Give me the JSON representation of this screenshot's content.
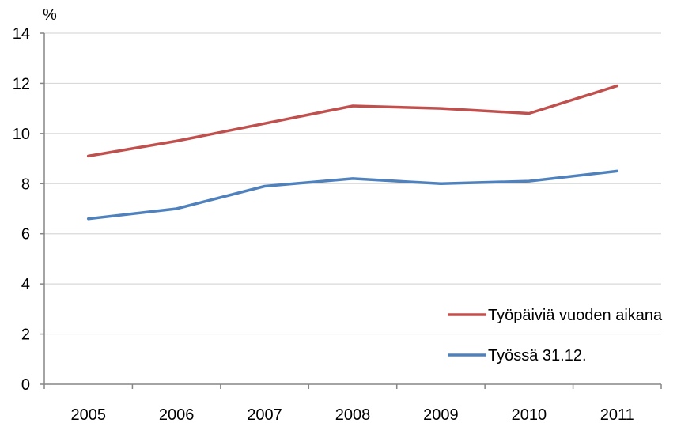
{
  "chart_data": {
    "type": "line",
    "ylabel": "%",
    "xlabel": "",
    "title": "",
    "categories": [
      "2005",
      "2006",
      "2007",
      "2008",
      "2009",
      "2010",
      "2011"
    ],
    "ylim": [
      0,
      14
    ],
    "yticks": [
      0,
      2,
      4,
      6,
      8,
      10,
      12,
      14
    ],
    "grid": true,
    "legend_position": "bottom-right",
    "series": [
      {
        "name": "Työpäiviä vuoden aikana",
        "color": "#c0504d",
        "values": [
          9.1,
          9.7,
          10.4,
          11.1,
          11.0,
          10.8,
          11.9
        ]
      },
      {
        "name": "Työssä 31.12.",
        "color": "#4f81bd",
        "values": [
          6.6,
          7.0,
          7.9,
          8.2,
          8.0,
          8.1,
          8.5
        ]
      }
    ]
  }
}
